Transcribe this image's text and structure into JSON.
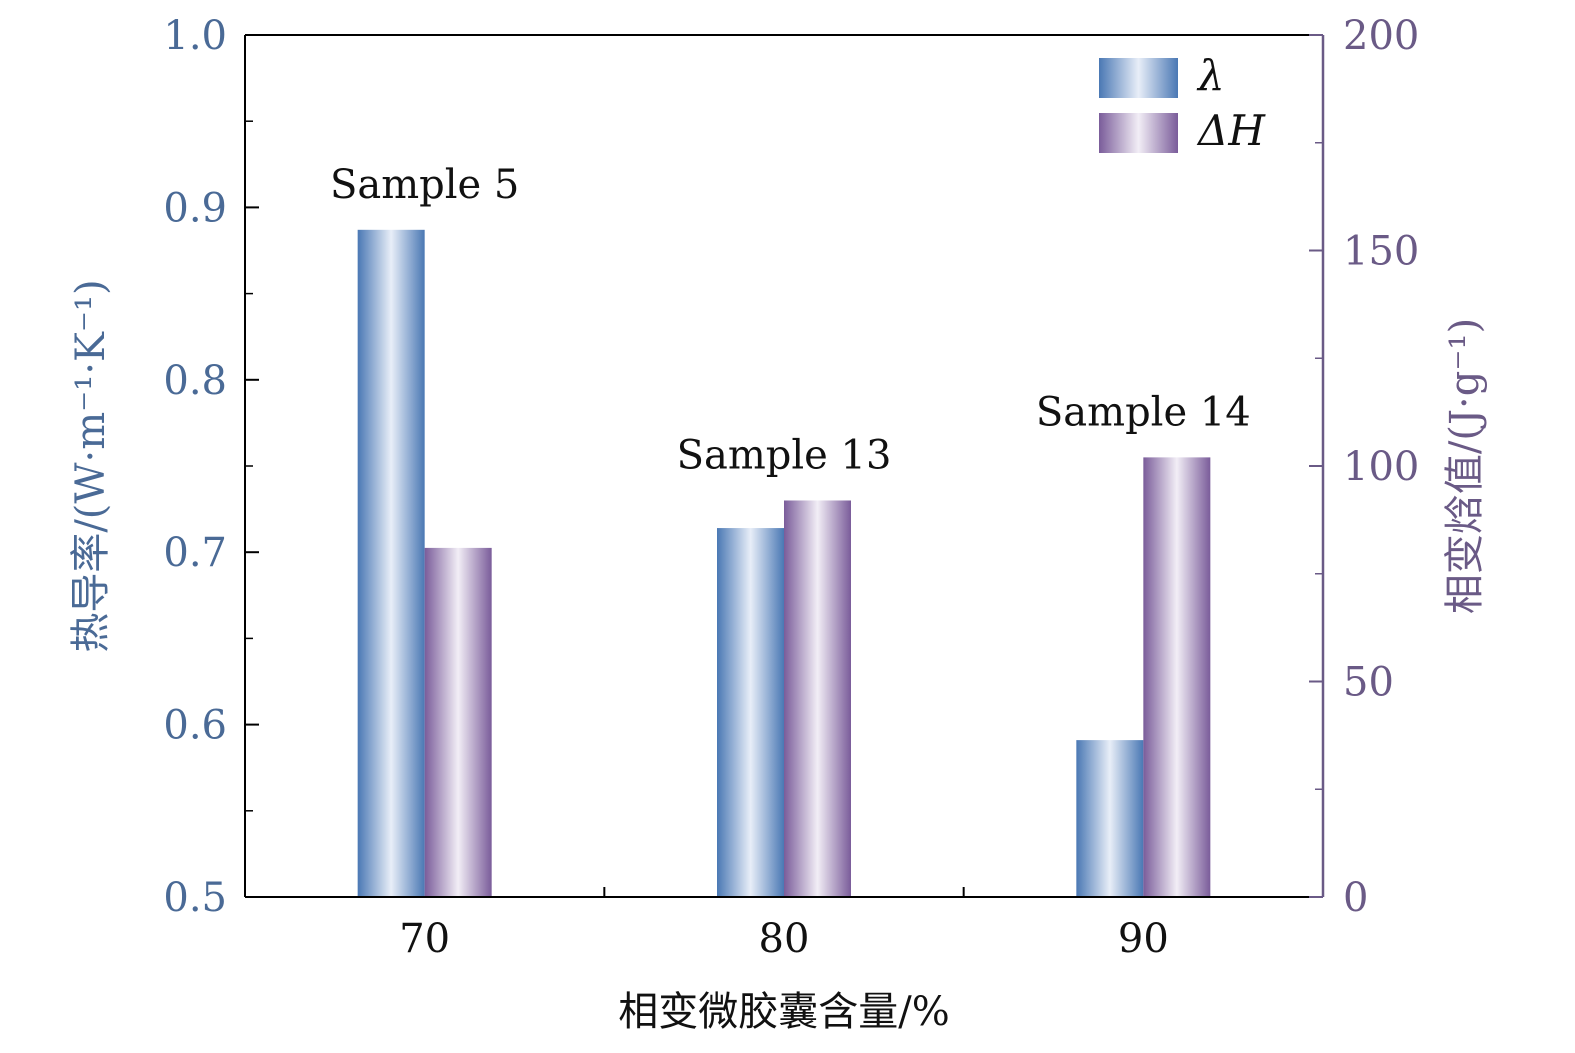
{
  "colors": {
    "left_axis": "#4a6a96",
    "right_axis": "#6a5a86",
    "lambda_edge": "#4a78b4",
    "lambda_center": "#e8eef8",
    "dh_edge": "#7a5c9a",
    "dh_center": "#f2eef6",
    "frame": "#000000"
  },
  "chart_data": {
    "type": "bar",
    "categories": [
      "70",
      "80",
      "90"
    ],
    "xlabel": "相变微胶囊含量/%",
    "ylabel_left": "热导率/(W·m⁻¹·K⁻¹)",
    "ylabel_right": "相变焓值/(J·g⁻¹)",
    "ylim_left": [
      0.5,
      1.0
    ],
    "ylim_right": [
      0,
      200
    ],
    "yticks_left": [
      "0.5",
      "0.6",
      "0.7",
      "0.8",
      "0.9",
      "1.0"
    ],
    "yticks_right": [
      "0",
      "50",
      "100",
      "150",
      "200"
    ],
    "series": [
      {
        "name": "λ",
        "axis": "left",
        "values": [
          0.887,
          0.714,
          0.591
        ]
      },
      {
        "name": "ΔH",
        "axis": "right",
        "values": [
          81,
          92,
          102
        ]
      }
    ],
    "annotations": [
      "Sample 5",
      "Sample 13",
      "Sample 14"
    ],
    "legend": {
      "placement": "top-right",
      "entries": [
        "λ",
        "ΔH"
      ]
    },
    "grid": false
  }
}
